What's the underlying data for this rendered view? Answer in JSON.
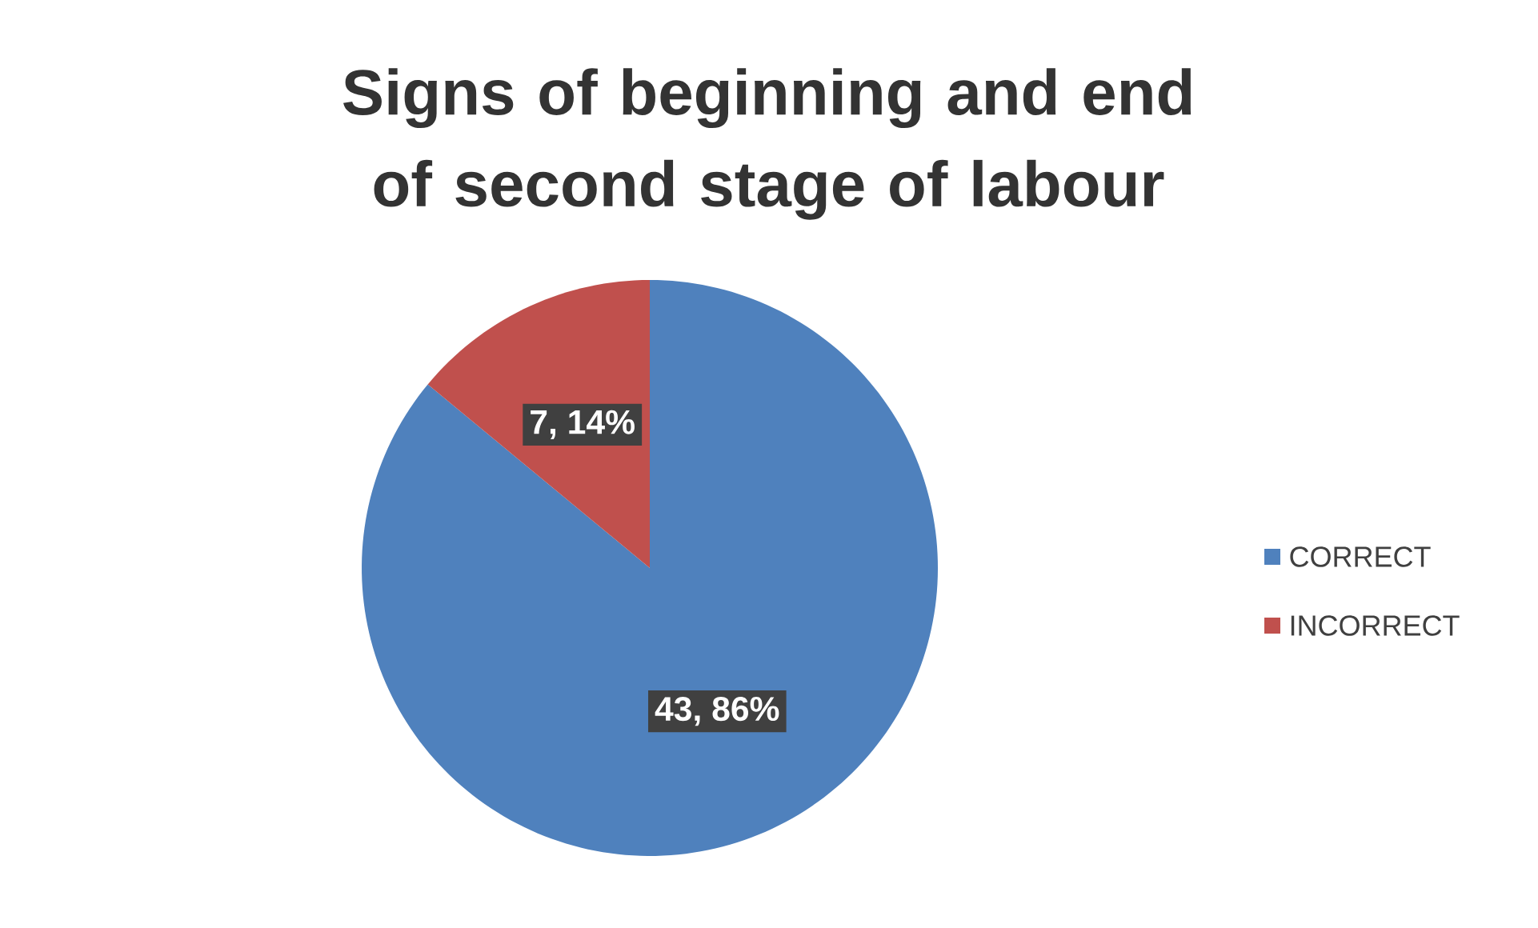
{
  "chart_data": {
    "type": "pie",
    "title": "Signs of beginning and end of second stage of labour",
    "categories": [
      "CORRECT",
      "INCORRECT"
    ],
    "values": [
      43,
      7
    ],
    "colors": [
      "#4f81bd",
      "#c0504d"
    ],
    "value_labels": [
      "43, 86%",
      "7, 14%"
    ],
    "legend": "right"
  }
}
